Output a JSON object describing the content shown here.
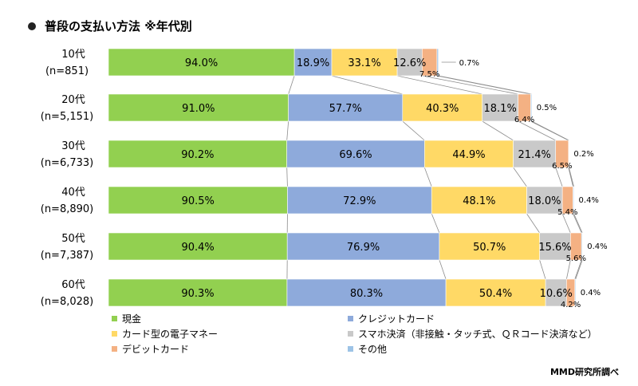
{
  "title": "普段の支払い方法 ※年代別",
  "source": "MMD研究所調べ",
  "chart_data": {
    "type": "bar",
    "orientation": "horizontal",
    "stacked": true,
    "title": "普段の支払い方法 ※年代別",
    "categories": [
      "10代",
      "20代",
      "30代",
      "40代",
      "50代",
      "60代"
    ],
    "sample_sizes": [
      "(n=851)",
      "(n=5,151)",
      "(n=6,733)",
      "(n=8,890)",
      "(n=7,387)",
      "(n=8,028)"
    ],
    "series": [
      {
        "name": "現金",
        "color": "#92d050",
        "values": [
          94.0,
          91.0,
          90.2,
          90.5,
          90.4,
          90.3
        ]
      },
      {
        "name": "クレジットカード",
        "color": "#8eaadb",
        "values": [
          18.9,
          57.7,
          69.6,
          72.9,
          76.9,
          80.3
        ]
      },
      {
        "name": "カード型の電子マネー",
        "color": "#ffd966",
        "values": [
          33.1,
          40.3,
          44.9,
          48.1,
          50.7,
          50.4
        ]
      },
      {
        "name": "スマホ決済（非接触・タッチ式、ＱＲコード決済など）",
        "color": "#c9c9c9",
        "values": [
          12.6,
          18.1,
          21.4,
          18.0,
          15.6,
          10.6
        ]
      },
      {
        "name": "デビットカード",
        "color": "#f4b183",
        "values": [
          7.5,
          6.4,
          6.5,
          5.4,
          5.6,
          4.2
        ]
      },
      {
        "name": "その他",
        "color": "#9dc3e6",
        "values": [
          0.7,
          0.5,
          0.2,
          0.4,
          0.4,
          0.4
        ]
      }
    ],
    "value_labels": [
      [
        "94.0%",
        "18.9%",
        "33.1%",
        "12.6%",
        "7.5%",
        "0.7%"
      ],
      [
        "91.0%",
        "57.7%",
        "40.3%",
        "18.1%",
        "6.4%",
        "0.5%"
      ],
      [
        "90.2%",
        "69.6%",
        "44.9%",
        "21.4%",
        "6.5%",
        "0.2%"
      ],
      [
        "90.5%",
        "72.9%",
        "48.1%",
        "18.0%",
        "5.4%",
        "0.4%"
      ],
      [
        "90.4%",
        "76.9%",
        "50.7%",
        "15.6%",
        "5.6%",
        "0.4%"
      ],
      [
        "90.3%",
        "80.3%",
        "50.4%",
        "10.6%",
        "4.2%",
        "0.4%"
      ]
    ],
    "legend_position": "bottom-left"
  }
}
